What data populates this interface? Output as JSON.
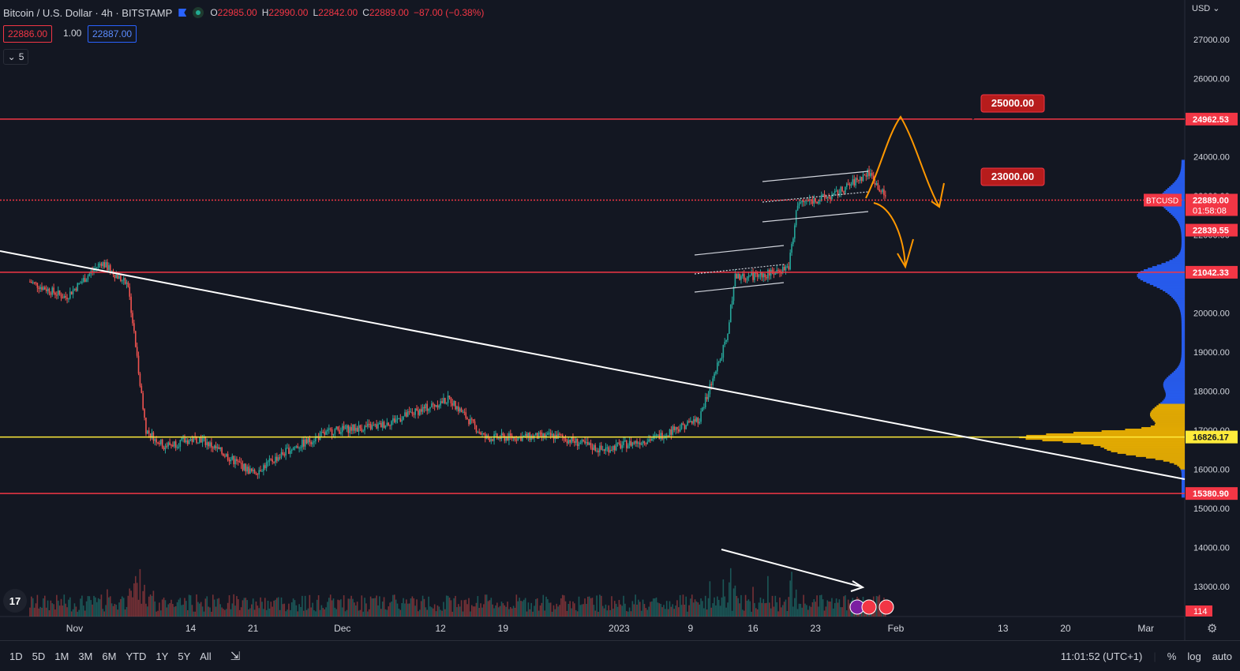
{
  "header": {
    "symbol": "Bitcoin / U.S. Dollar · 4h · BITSTAMP",
    "ohlc": [
      {
        "k": "O",
        "v": "22985.00"
      },
      {
        "k": "H",
        "v": "22990.00"
      },
      {
        "k": "L",
        "v": "22842.00"
      },
      {
        "k": "C",
        "v": "22889.00"
      }
    ],
    "change": "−87.00 (−0.38%)"
  },
  "bid": "22886.00",
  "spread": "1.00",
  "ask": "22887.00",
  "indicator_count": "5",
  "currency": "USD",
  "price_axis": {
    "ticks": [
      "27000.00",
      "26000.00",
      "24000.00",
      "23000.00",
      "22000.00",
      "20000.00",
      "19000.00",
      "18000.00",
      "17000.00",
      "16000.00",
      "15000.00",
      "14000.00",
      "13000.00"
    ],
    "tick_values": [
      27000,
      26000,
      24000,
      23000,
      22000,
      20000,
      19000,
      18000,
      17000,
      16000,
      15000,
      14000,
      13000
    ]
  },
  "time_axis": [
    "Nov",
    "14",
    "21",
    "Dec",
    "12",
    "19",
    "2023",
    "9",
    "16",
    "23",
    "Feb",
    "13",
    "20",
    "Mar"
  ],
  "levels": [
    {
      "label": "24962.53",
      "value": 24962.53,
      "color": "#f23645"
    },
    {
      "label": "22889.00",
      "value": 22889.0,
      "color": "#f23645",
      "dotted": true
    },
    {
      "label": "21042.33",
      "value": 21042.33,
      "color": "#f23645"
    },
    {
      "label": "16826.17",
      "value": 16826.17,
      "color": "#ffeb3b"
    },
    {
      "label": "15380.90",
      "value": 15380.9,
      "color": "#f23645"
    }
  ],
  "current": {
    "symbol_tag": "BTCUSD",
    "price": "22889.00",
    "countdown": "01:58:08",
    "low_tag": "22839.55"
  },
  "volume_tag": "114",
  "callouts": [
    {
      "text": "25000.00",
      "value": 25000
    },
    {
      "text": "23000.00",
      "value": 23000
    }
  ],
  "bottom": {
    "ranges": [
      "1D",
      "5D",
      "1M",
      "3M",
      "6M",
      "YTD",
      "1Y",
      "5Y",
      "All"
    ],
    "clock": "11:01:52 (UTC+1)",
    "pct": "%",
    "log": "log",
    "auto": "auto"
  },
  "chart_data": {
    "type": "candlestick",
    "symbol": "BTCUSD",
    "interval": "4h",
    "exchange": "BITSTAMP",
    "ylim": [
      12600,
      28000
    ],
    "date_range": [
      "2022-10-24",
      "2023-03-07"
    ],
    "price_path": [
      {
        "date": "2022-10-27",
        "price": 20800
      },
      {
        "date": "2022-10-31",
        "price": 20400
      },
      {
        "date": "2022-11-04",
        "price": 21300
      },
      {
        "date": "2022-11-07",
        "price": 20700
      },
      {
        "date": "2022-11-09",
        "price": 17000
      },
      {
        "date": "2022-11-11",
        "price": 16600
      },
      {
        "date": "2022-11-15",
        "price": 16800
      },
      {
        "date": "2022-11-21",
        "price": 15900
      },
      {
        "date": "2022-11-25",
        "price": 16500
      },
      {
        "date": "2022-11-30",
        "price": 17000
      },
      {
        "date": "2022-12-05",
        "price": 17100
      },
      {
        "date": "2022-12-13",
        "price": 17800
      },
      {
        "date": "2022-12-17",
        "price": 16800
      },
      {
        "date": "2022-12-25",
        "price": 16850
      },
      {
        "date": "2022-12-30",
        "price": 16500
      },
      {
        "date": "2023-01-05",
        "price": 16800
      },
      {
        "date": "2023-01-10",
        "price": 17300
      },
      {
        "date": "2023-01-13",
        "price": 19300
      },
      {
        "date": "2023-01-14",
        "price": 20900
      },
      {
        "date": "2023-01-18",
        "price": 21000
      },
      {
        "date": "2023-01-20",
        "price": 21200
      },
      {
        "date": "2023-01-21",
        "price": 22800
      },
      {
        "date": "2023-01-25",
        "price": 23000
      },
      {
        "date": "2023-01-29",
        "price": 23600
      },
      {
        "date": "2023-01-31",
        "price": 22889
      }
    ]
  },
  "colors": {
    "background": "#131722",
    "up": "#26a69a",
    "down": "#ef5350",
    "accent": "#2962ff",
    "volume_profile_value": "#f5b700",
    "volume_profile_other": "#2962ff",
    "annotation": "#ff9800"
  }
}
